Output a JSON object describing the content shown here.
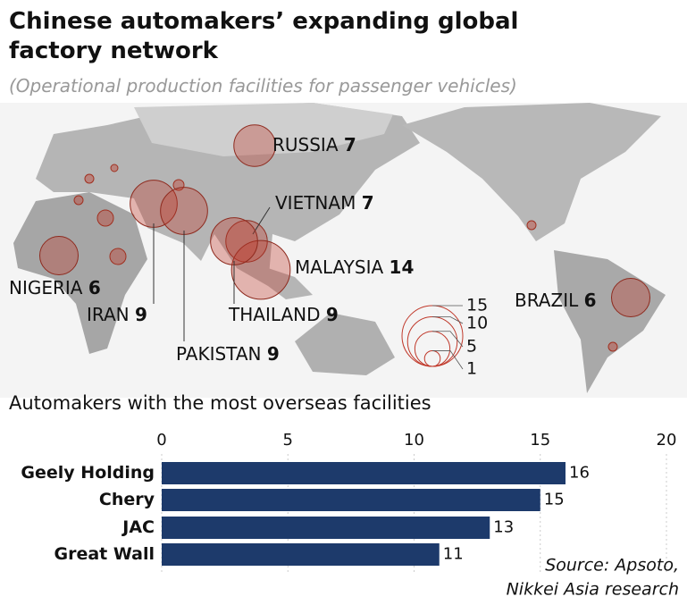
{
  "title": "Chinese automakers’ expanding global factory network",
  "subtitle": "(Operational production facilities for passenger vehicles)",
  "chart_data": [
    {
      "type": "bubble_map",
      "labels": [
        "RUSSIA",
        "VIETNAM",
        "MALAYSIA",
        "NIGERIA",
        "IRAN",
        "THAILAND",
        "BRAZIL",
        "PAKISTAN"
      ],
      "values": [
        7,
        7,
        14,
        6,
        9,
        9,
        6,
        9
      ],
      "color": "#c0392b",
      "size_legend": [
        15,
        10,
        5,
        1
      ]
    },
    {
      "type": "hbar",
      "title": "Automakers with the most overseas facilities",
      "categories": [
        "Geely Holding",
        "Chery",
        "JAC",
        "Great Wall"
      ],
      "values": [
        16,
        15,
        13,
        11
      ],
      "color": "#1d3a6b",
      "xlim": [
        0,
        20
      ],
      "xticks": [
        0,
        5,
        10,
        15,
        20
      ],
      "grid": true,
      "source": [
        "Source: Apsoto,",
        "Nikkei Asia research"
      ]
    }
  ]
}
